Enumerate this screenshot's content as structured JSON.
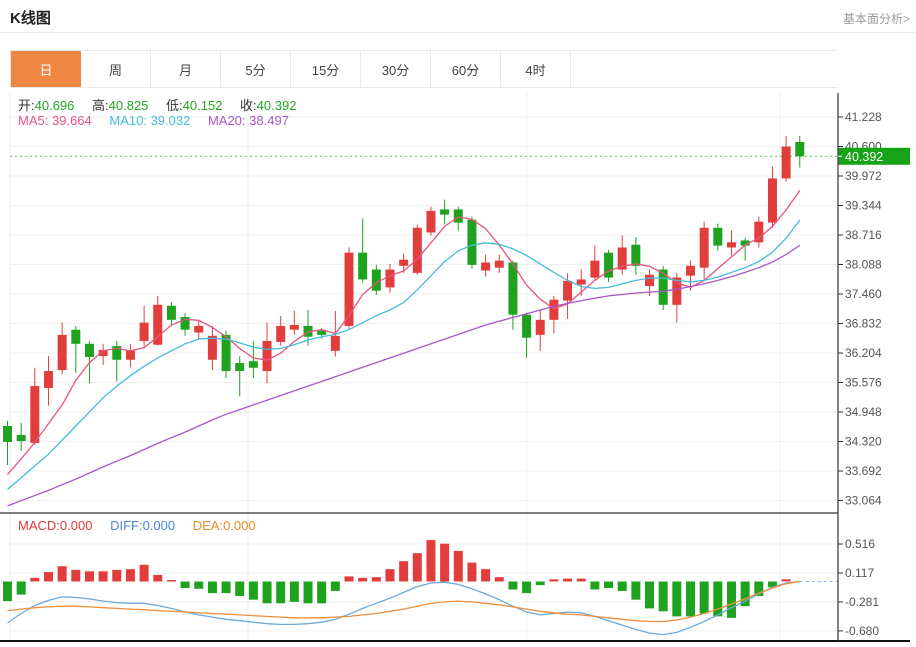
{
  "header": {
    "title": "K线图",
    "link": "基本面分析>"
  },
  "tabs": {
    "items": [
      "日",
      "周",
      "月",
      "5分",
      "15分",
      "30分",
      "60分",
      "4时"
    ],
    "selected": "日"
  },
  "ohlc": {
    "open_label": "开:",
    "open": "40.696",
    "high_label": "高:",
    "high": "40.825",
    "low_label": "低:",
    "low": "40.152",
    "close_label": "收:",
    "close": "40.392"
  },
  "ma_header": {
    "ma5_label": "MA5:",
    "ma5": "39.664",
    "ma10_label": "MA10:",
    "ma10": "39.032",
    "ma20_label": "MA20:",
    "ma20": "38.497"
  },
  "macd_header": {
    "macd_label": "MACD:",
    "macd": "0.000",
    "diff_label": "DIFF:",
    "diff": "0.000",
    "dea_label": "DEA:",
    "dea": "0.000"
  },
  "price_badge": "40.392",
  "colors": {
    "up": "#e23d3d",
    "down": "#1fa31f",
    "badge": "#17a317",
    "tab_active": "#ef8642",
    "price_line": "#5bb85b",
    "ma5": "#e85380",
    "ma10": "#45bcd9",
    "ma20": "#aa55c8",
    "diff_line": "#6aaade",
    "dea_line": "#ef8f3c",
    "ohlc_value": "#21a821",
    "macd_text": "#e03c3c",
    "diff_text": "#4a86d8",
    "dea_text": "#ef8c28",
    "grid": "#efefef",
    "axis": "#333333",
    "tick_label": "#555555"
  },
  "chart_data": [
    {
      "type": "candlestick",
      "title": "K线图",
      "y_ticks": [
        41.228,
        40.6,
        39.972,
        39.344,
        38.716,
        38.088,
        37.46,
        36.832,
        36.204,
        35.576,
        34.948,
        34.32,
        33.692,
        33.064
      ],
      "price_line": 40.392,
      "candles_ohlc": [
        [
          34.65,
          34.76,
          33.82,
          34.31
        ],
        [
          34.46,
          34.72,
          34.12,
          34.33
        ],
        [
          34.29,
          35.89,
          34.25,
          35.5
        ],
        [
          35.46,
          36.14,
          35.08,
          35.82
        ],
        [
          35.84,
          36.85,
          35.75,
          36.59
        ],
        [
          36.7,
          36.78,
          35.78,
          36.4
        ],
        [
          36.4,
          36.46,
          35.56,
          36.12
        ],
        [
          36.14,
          36.4,
          35.95,
          36.27
        ],
        [
          36.35,
          36.46,
          35.6,
          36.06
        ],
        [
          36.06,
          36.4,
          35.9,
          36.25
        ],
        [
          36.46,
          37.21,
          36.3,
          36.85
        ],
        [
          36.38,
          37.42,
          36.36,
          37.23
        ],
        [
          37.21,
          37.29,
          36.78,
          36.91
        ],
        [
          36.97,
          37.05,
          36.57,
          36.7
        ],
        [
          36.64,
          36.91,
          36.49,
          36.78
        ],
        [
          36.06,
          36.78,
          35.84,
          36.57
        ],
        [
          36.59,
          36.68,
          35.67,
          35.82
        ],
        [
          35.99,
          36.13,
          35.28,
          35.82
        ],
        [
          36.03,
          36.46,
          35.67,
          35.89
        ],
        [
          35.82,
          36.85,
          35.56,
          36.46
        ],
        [
          36.44,
          36.99,
          36.36,
          36.78
        ],
        [
          36.7,
          37.1,
          36.59,
          36.8
        ],
        [
          36.78,
          37.12,
          36.36,
          36.55
        ],
        [
          36.68,
          36.74,
          36.51,
          36.59
        ],
        [
          36.25,
          37.1,
          36.13,
          36.57
        ],
        [
          36.78,
          38.45,
          36.7,
          38.34
        ],
        [
          38.34,
          39.07,
          37.7,
          37.77
        ],
        [
          37.98,
          38.08,
          37.44,
          37.53
        ],
        [
          37.6,
          38.1,
          37.49,
          37.98
        ],
        [
          38.06,
          38.32,
          37.91,
          38.19
        ],
        [
          37.91,
          38.94,
          37.87,
          38.87
        ],
        [
          38.77,
          39.32,
          38.7,
          39.23
        ],
        [
          39.26,
          39.47,
          38.94,
          39.15
        ],
        [
          39.26,
          39.32,
          38.81,
          38.98
        ],
        [
          39.04,
          39.11,
          38.0,
          38.08
        ],
        [
          37.96,
          38.3,
          37.83,
          38.13
        ],
        [
          38.02,
          38.3,
          37.91,
          38.17
        ],
        [
          38.13,
          38.17,
          36.7,
          37.02
        ],
        [
          37.02,
          37.06,
          36.1,
          36.53
        ],
        [
          36.59,
          37.12,
          36.25,
          36.91
        ],
        [
          36.91,
          37.42,
          36.62,
          37.34
        ],
        [
          37.32,
          37.9,
          36.93,
          37.74
        ],
        [
          37.66,
          37.98,
          37.42,
          37.77
        ],
        [
          37.81,
          38.49,
          37.77,
          38.17
        ],
        [
          38.34,
          38.4,
          37.72,
          37.81
        ],
        [
          37.98,
          38.71,
          37.87,
          38.45
        ],
        [
          38.51,
          38.67,
          37.87,
          38.06
        ],
        [
          37.63,
          37.98,
          37.42,
          37.87
        ],
        [
          37.98,
          38.06,
          37.12,
          37.23
        ],
        [
          37.23,
          37.91,
          36.85,
          37.81
        ],
        [
          37.85,
          38.17,
          37.53,
          38.06
        ],
        [
          38.02,
          39.0,
          37.74,
          38.87
        ],
        [
          38.87,
          38.96,
          38.38,
          38.49
        ],
        [
          38.45,
          38.81,
          38.28,
          38.56
        ],
        [
          38.6,
          38.66,
          38.17,
          38.49
        ],
        [
          38.56,
          39.11,
          38.45,
          39.0
        ],
        [
          38.98,
          40.17,
          38.87,
          39.92
        ],
        [
          39.92,
          40.82,
          39.85,
          40.6
        ],
        [
          40.696,
          40.825,
          40.152,
          40.392
        ]
      ],
      "series": [
        {
          "name": "MA5",
          "values": [
            33.62,
            33.95,
            34.3,
            34.7,
            35.1,
            35.62,
            36.0,
            36.25,
            36.3,
            36.25,
            36.32,
            36.55,
            36.8,
            36.92,
            36.9,
            36.75,
            36.55,
            36.3,
            36.1,
            36.05,
            36.2,
            36.45,
            36.65,
            36.7,
            36.62,
            37.0,
            37.45,
            37.7,
            37.85,
            37.95,
            38.2,
            38.55,
            38.9,
            39.1,
            39.05,
            38.85,
            38.5,
            38.1,
            37.65,
            37.35,
            37.15,
            37.25,
            37.5,
            37.75,
            37.95,
            38.05,
            38.1,
            38.05,
            37.9,
            37.7,
            37.6,
            37.75,
            38.0,
            38.25,
            38.5,
            38.65,
            38.9,
            39.25,
            39.664
          ]
        },
        {
          "name": "MA10",
          "values": [
            33.3,
            33.55,
            33.8,
            34.05,
            34.35,
            34.65,
            34.95,
            35.25,
            35.5,
            35.72,
            35.92,
            36.1,
            36.25,
            36.4,
            36.5,
            36.52,
            36.5,
            36.42,
            36.33,
            36.28,
            36.3,
            36.38,
            36.48,
            36.55,
            36.6,
            36.7,
            36.85,
            37.0,
            37.12,
            37.28,
            37.55,
            37.85,
            38.15,
            38.38,
            38.5,
            38.55,
            38.52,
            38.42,
            38.28,
            38.1,
            37.92,
            37.75,
            37.62,
            37.58,
            37.6,
            37.68,
            37.75,
            37.8,
            37.8,
            37.75,
            37.72,
            37.75,
            37.82,
            37.92,
            38.02,
            38.15,
            38.35,
            38.65,
            39.032
          ]
        },
        {
          "name": "MA20",
          "values": [
            32.95,
            33.06,
            33.17,
            33.28,
            33.4,
            33.52,
            33.65,
            33.78,
            33.9,
            34.02,
            34.15,
            34.28,
            34.4,
            34.52,
            34.65,
            34.78,
            34.9,
            35.0,
            35.1,
            35.2,
            35.3,
            35.4,
            35.5,
            35.6,
            35.7,
            35.8,
            35.9,
            36.0,
            36.1,
            36.2,
            36.3,
            36.4,
            36.5,
            36.6,
            36.7,
            36.8,
            36.88,
            36.96,
            37.04,
            37.12,
            37.2,
            37.26,
            37.32,
            37.37,
            37.42,
            37.45,
            37.48,
            37.5,
            37.52,
            37.56,
            37.62,
            37.68,
            37.75,
            37.83,
            37.92,
            38.02,
            38.14,
            38.3,
            38.497
          ]
        }
      ]
    },
    {
      "type": "bar",
      "name": "MACD",
      "y_ticks": [
        0.516,
        0.117,
        -0.281,
        -0.68
      ],
      "values": [
        -0.27,
        -0.18,
        0.05,
        0.13,
        0.21,
        0.16,
        0.14,
        0.14,
        0.16,
        0.17,
        0.23,
        0.09,
        0.02,
        -0.09,
        -0.1,
        -0.16,
        -0.16,
        -0.2,
        -0.25,
        -0.3,
        -0.3,
        -0.28,
        -0.3,
        -0.3,
        -0.13,
        0.07,
        0.05,
        0.06,
        0.17,
        0.28,
        0.39,
        0.57,
        0.52,
        0.42,
        0.26,
        0.17,
        0.06,
        -0.11,
        -0.16,
        -0.05,
        0.03,
        0.04,
        0.04,
        -0.11,
        -0.09,
        -0.13,
        -0.25,
        -0.37,
        -0.41,
        -0.48,
        -0.48,
        -0.44,
        -0.48,
        -0.5,
        -0.34,
        -0.2,
        -0.08,
        0.03,
        0.0
      ],
      "series": [
        {
          "name": "DIFF",
          "values": [
            -0.57,
            -0.44,
            -0.33,
            -0.26,
            -0.21,
            -0.22,
            -0.24,
            -0.27,
            -0.29,
            -0.3,
            -0.3,
            -0.33,
            -0.37,
            -0.42,
            -0.46,
            -0.49,
            -0.52,
            -0.54,
            -0.56,
            -0.58,
            -0.59,
            -0.59,
            -0.58,
            -0.56,
            -0.52,
            -0.45,
            -0.37,
            -0.3,
            -0.23,
            -0.15,
            -0.07,
            -0.02,
            -0.01,
            -0.04,
            -0.1,
            -0.17,
            -0.25,
            -0.34,
            -0.42,
            -0.46,
            -0.44,
            -0.42,
            -0.43,
            -0.48,
            -0.54,
            -0.6,
            -0.66,
            -0.71,
            -0.73,
            -0.7,
            -0.63,
            -0.55,
            -0.46,
            -0.36,
            -0.27,
            -0.17,
            -0.08,
            -0.02,
            0.0
          ]
        },
        {
          "name": "DEA",
          "values": [
            -0.4,
            -0.38,
            -0.36,
            -0.35,
            -0.34,
            -0.34,
            -0.35,
            -0.36,
            -0.37,
            -0.38,
            -0.39,
            -0.4,
            -0.41,
            -0.42,
            -0.43,
            -0.44,
            -0.45,
            -0.46,
            -0.47,
            -0.48,
            -0.49,
            -0.5,
            -0.5,
            -0.5,
            -0.49,
            -0.48,
            -0.46,
            -0.44,
            -0.41,
            -0.38,
            -0.34,
            -0.3,
            -0.28,
            -0.27,
            -0.28,
            -0.3,
            -0.32,
            -0.35,
            -0.38,
            -0.41,
            -0.43,
            -0.45,
            -0.46,
            -0.48,
            -0.5,
            -0.52,
            -0.54,
            -0.55,
            -0.55,
            -0.53,
            -0.49,
            -0.44,
            -0.38,
            -0.31,
            -0.24,
            -0.16,
            -0.09,
            -0.03,
            0.0
          ]
        }
      ]
    }
  ]
}
